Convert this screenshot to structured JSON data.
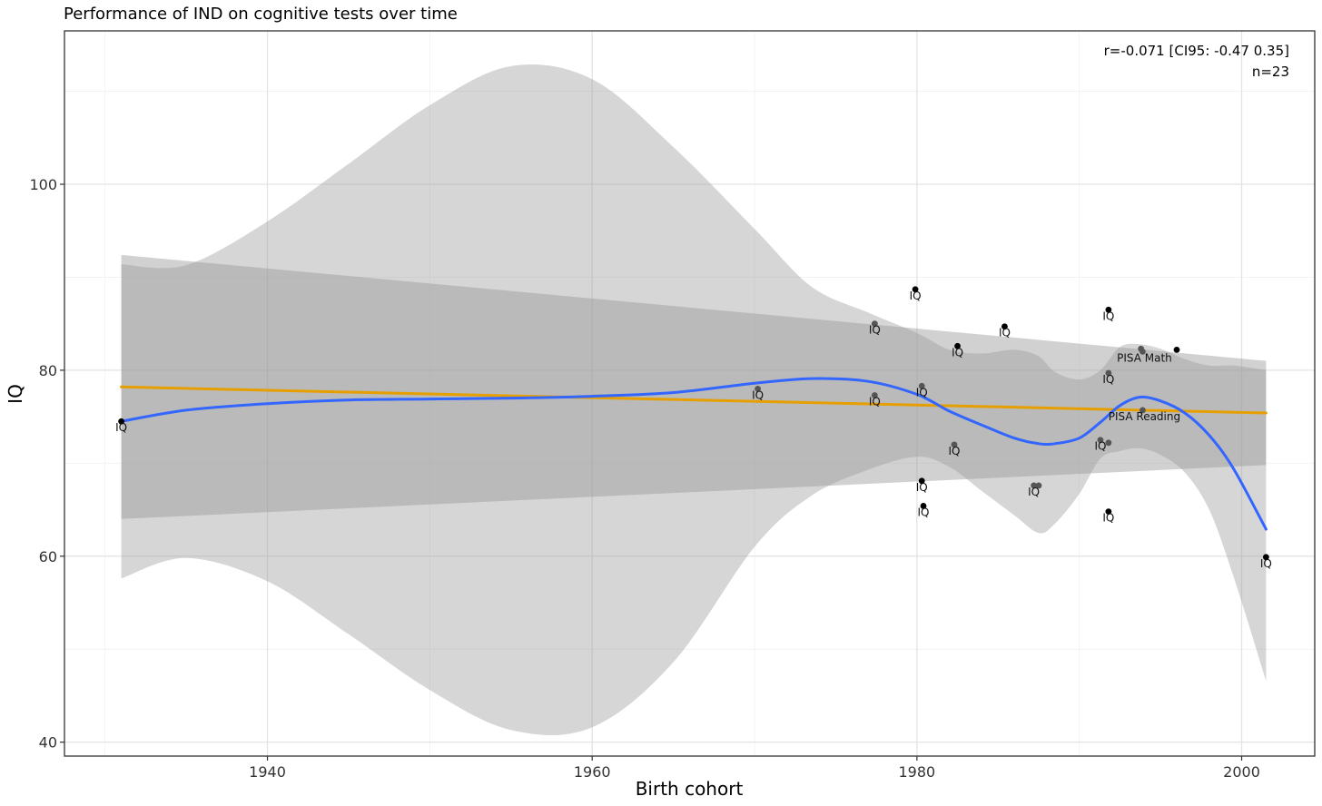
{
  "chart_data": {
    "type": "scatter",
    "title": "Performance of IND on cognitive tests over time",
    "xlabel": "Birth cohort",
    "ylabel": "IQ",
    "xlim": [
      1927.5,
      2004.5
    ],
    "ylim": [
      38.5,
      116.5
    ],
    "x_ticks": [
      1940,
      1960,
      1980,
      2000
    ],
    "y_ticks": [
      40,
      60,
      80,
      100
    ],
    "grid": true,
    "annotation": [
      "r=-0.071 [CI95: -0.47 0.35]",
      "n=23"
    ],
    "points": [
      {
        "x": 1931,
        "y": 74.5,
        "label": "IQ",
        "color": "#000000"
      },
      {
        "x": 1970.2,
        "y": 78.0,
        "label": "IQ",
        "color": "#555555"
      },
      {
        "x": 1977.4,
        "y": 85.0,
        "label": "IQ",
        "color": "#555555"
      },
      {
        "x": 1977.4,
        "y": 77.3,
        "label": "IQ",
        "color": "#555555"
      },
      {
        "x": 1979.9,
        "y": 88.7,
        "label": "IQ",
        "color": "#000000"
      },
      {
        "x": 1980.3,
        "y": 78.3,
        "label": "IQ",
        "color": "#555555"
      },
      {
        "x": 1980.3,
        "y": 68.1,
        "label": "IQ",
        "color": "#000000"
      },
      {
        "x": 1980.4,
        "y": 65.4,
        "label": "IQ",
        "color": "#000000"
      },
      {
        "x": 1982.5,
        "y": 82.6,
        "label": "IQ",
        "color": "#000000"
      },
      {
        "x": 1982.3,
        "y": 72.0,
        "label": "IQ",
        "color": "#555555"
      },
      {
        "x": 1985.4,
        "y": 84.7,
        "label": "IQ",
        "color": "#000000"
      },
      {
        "x": 1987.2,
        "y": 67.6,
        "label": "IQ",
        "color": "#555555"
      },
      {
        "x": 1987.5,
        "y": 67.6,
        "label": "",
        "color": "#555555"
      },
      {
        "x": 1991.3,
        "y": 72.5,
        "label": "IQ",
        "color": "#555555"
      },
      {
        "x": 1991.8,
        "y": 72.2,
        "label": "",
        "color": "#555555"
      },
      {
        "x": 1991.8,
        "y": 86.5,
        "label": "IQ",
        "color": "#000000"
      },
      {
        "x": 1991.8,
        "y": 79.7,
        "label": "IQ",
        "color": "#555555"
      },
      {
        "x": 1991.8,
        "y": 64.8,
        "label": "IQ",
        "color": "#000000"
      },
      {
        "x": 1993.8,
        "y": 82.3,
        "label": "",
        "color": "#555555"
      },
      {
        "x": 1993.9,
        "y": 82.0,
        "label": "PISA Math",
        "color": "#555555"
      },
      {
        "x": 1993.9,
        "y": 75.7,
        "label": "PISA Reading",
        "color": "#555555"
      },
      {
        "x": 1996.0,
        "y": 82.2,
        "label": "",
        "color": "#000000"
      },
      {
        "x": 2001.5,
        "y": 59.9,
        "label": "IQ",
        "color": "#000000"
      }
    ],
    "series": [
      {
        "type": "linear-fit",
        "color": "#E69F00",
        "x": [
          1931,
          2001.5
        ],
        "y": [
          78.2,
          75.4
        ],
        "ci_lower": [
          64.0,
          69.8
        ],
        "ci_upper": [
          92.4,
          81.0
        ]
      },
      {
        "type": "loess-fit",
        "color": "#3366FF",
        "x": [
          1931,
          1935,
          1940,
          1945,
          1950,
          1955,
          1960,
          1965,
          1970,
          1973.5,
          1977,
          1980,
          1982,
          1984,
          1986,
          1987.5,
          1988.5,
          1990,
          1991.3,
          1992.5,
          1993.7,
          1995,
          1996.5,
          1998,
          1999.5,
          2001.5
        ],
        "y": [
          74.5,
          75.7,
          76.4,
          76.8,
          76.9,
          77.0,
          77.2,
          77.6,
          78.6,
          79.1,
          78.8,
          77.4,
          75.6,
          74.1,
          72.7,
          72.1,
          72.1,
          72.7,
          74.4,
          76.2,
          77.1,
          76.7,
          75.4,
          73.0,
          69.4,
          62.9
        ],
        "ci_lower": [
          57.6,
          59.8,
          57.3,
          51.6,
          45.6,
          41.3,
          41.6,
          48.6,
          61.0,
          66.5,
          69.3,
          70.7,
          69.6,
          67.0,
          64.4,
          62.5,
          63.5,
          66.7,
          70.5,
          71.3,
          71.6,
          70.9,
          69.0,
          65.0,
          57.8,
          46.6
        ],
        "ci_upper": [
          91.4,
          91.3,
          96.0,
          102.2,
          108.5,
          112.7,
          111.3,
          104.0,
          95.2,
          89.0,
          86.2,
          84.0,
          82.2,
          81.8,
          82.2,
          81.5,
          79.8,
          79.0,
          80.0,
          82.5,
          82.8,
          82.3,
          81.2,
          80.5,
          80.5,
          80.0
        ]
      }
    ]
  }
}
